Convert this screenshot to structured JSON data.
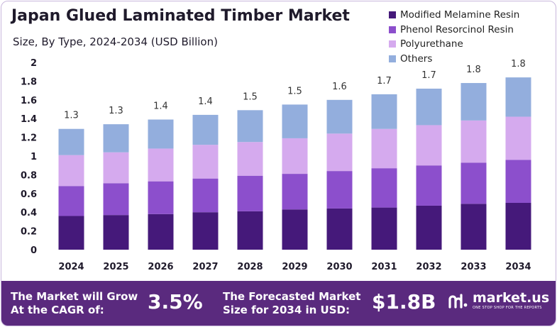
{
  "chart_data": {
    "type": "bar",
    "stacked": true,
    "title": "Japan Glued Laminated Timber Market",
    "subtitle": "Size, By Type, 2024-2034 (USD Billion)",
    "categories": [
      "2024",
      "2025",
      "2026",
      "2027",
      "2028",
      "2029",
      "2030",
      "2031",
      "2032",
      "2033",
      "2034"
    ],
    "series": [
      {
        "name": "Modified Melamine Resin",
        "color": "#45197a",
        "values": [
          0.36,
          0.37,
          0.38,
          0.4,
          0.41,
          0.43,
          0.44,
          0.45,
          0.47,
          0.49,
          0.5
        ]
      },
      {
        "name": "Phenol Resorcinol Resin",
        "color": "#8c4fcc",
        "values": [
          0.32,
          0.34,
          0.35,
          0.36,
          0.38,
          0.38,
          0.4,
          0.42,
          0.43,
          0.44,
          0.46
        ]
      },
      {
        "name": "Polyurethane",
        "color": "#d5aaee",
        "values": [
          0.33,
          0.33,
          0.35,
          0.36,
          0.36,
          0.38,
          0.4,
          0.42,
          0.43,
          0.45,
          0.46
        ]
      },
      {
        "name": "Others",
        "color": "#93aedd",
        "values": [
          0.28,
          0.3,
          0.31,
          0.32,
          0.34,
          0.36,
          0.36,
          0.37,
          0.39,
          0.4,
          0.42
        ]
      }
    ],
    "totals": [
      "1.3",
      "1.3",
      "1.4",
      "1.4",
      "1.5",
      "1.5",
      "1.6",
      "1.7",
      "1.7",
      "1.8",
      "1.8"
    ],
    "ylim": [
      0,
      2
    ],
    "yticks": [
      "0",
      "0.2",
      "0.4",
      "0.6",
      "0.8",
      "1",
      "1.2",
      "1.4",
      "1.6",
      "1.8",
      "2"
    ],
    "grid": false,
    "legend_position": "top-right"
  },
  "banner": {
    "cagr_label_line1": "The Market will Grow",
    "cagr_label_line2": "At the CAGR of:",
    "cagr_value": "3.5%",
    "forecast_label_line1": "The Forecasted Market",
    "forecast_label_line2": "Size for 2034 in USD:",
    "forecast_value": "$1.8B",
    "brand_name": "market.us",
    "brand_tagline": "ONE STOP SHOP FOR THE REPORTS",
    "brand_icon": "market-us-logo-icon"
  }
}
